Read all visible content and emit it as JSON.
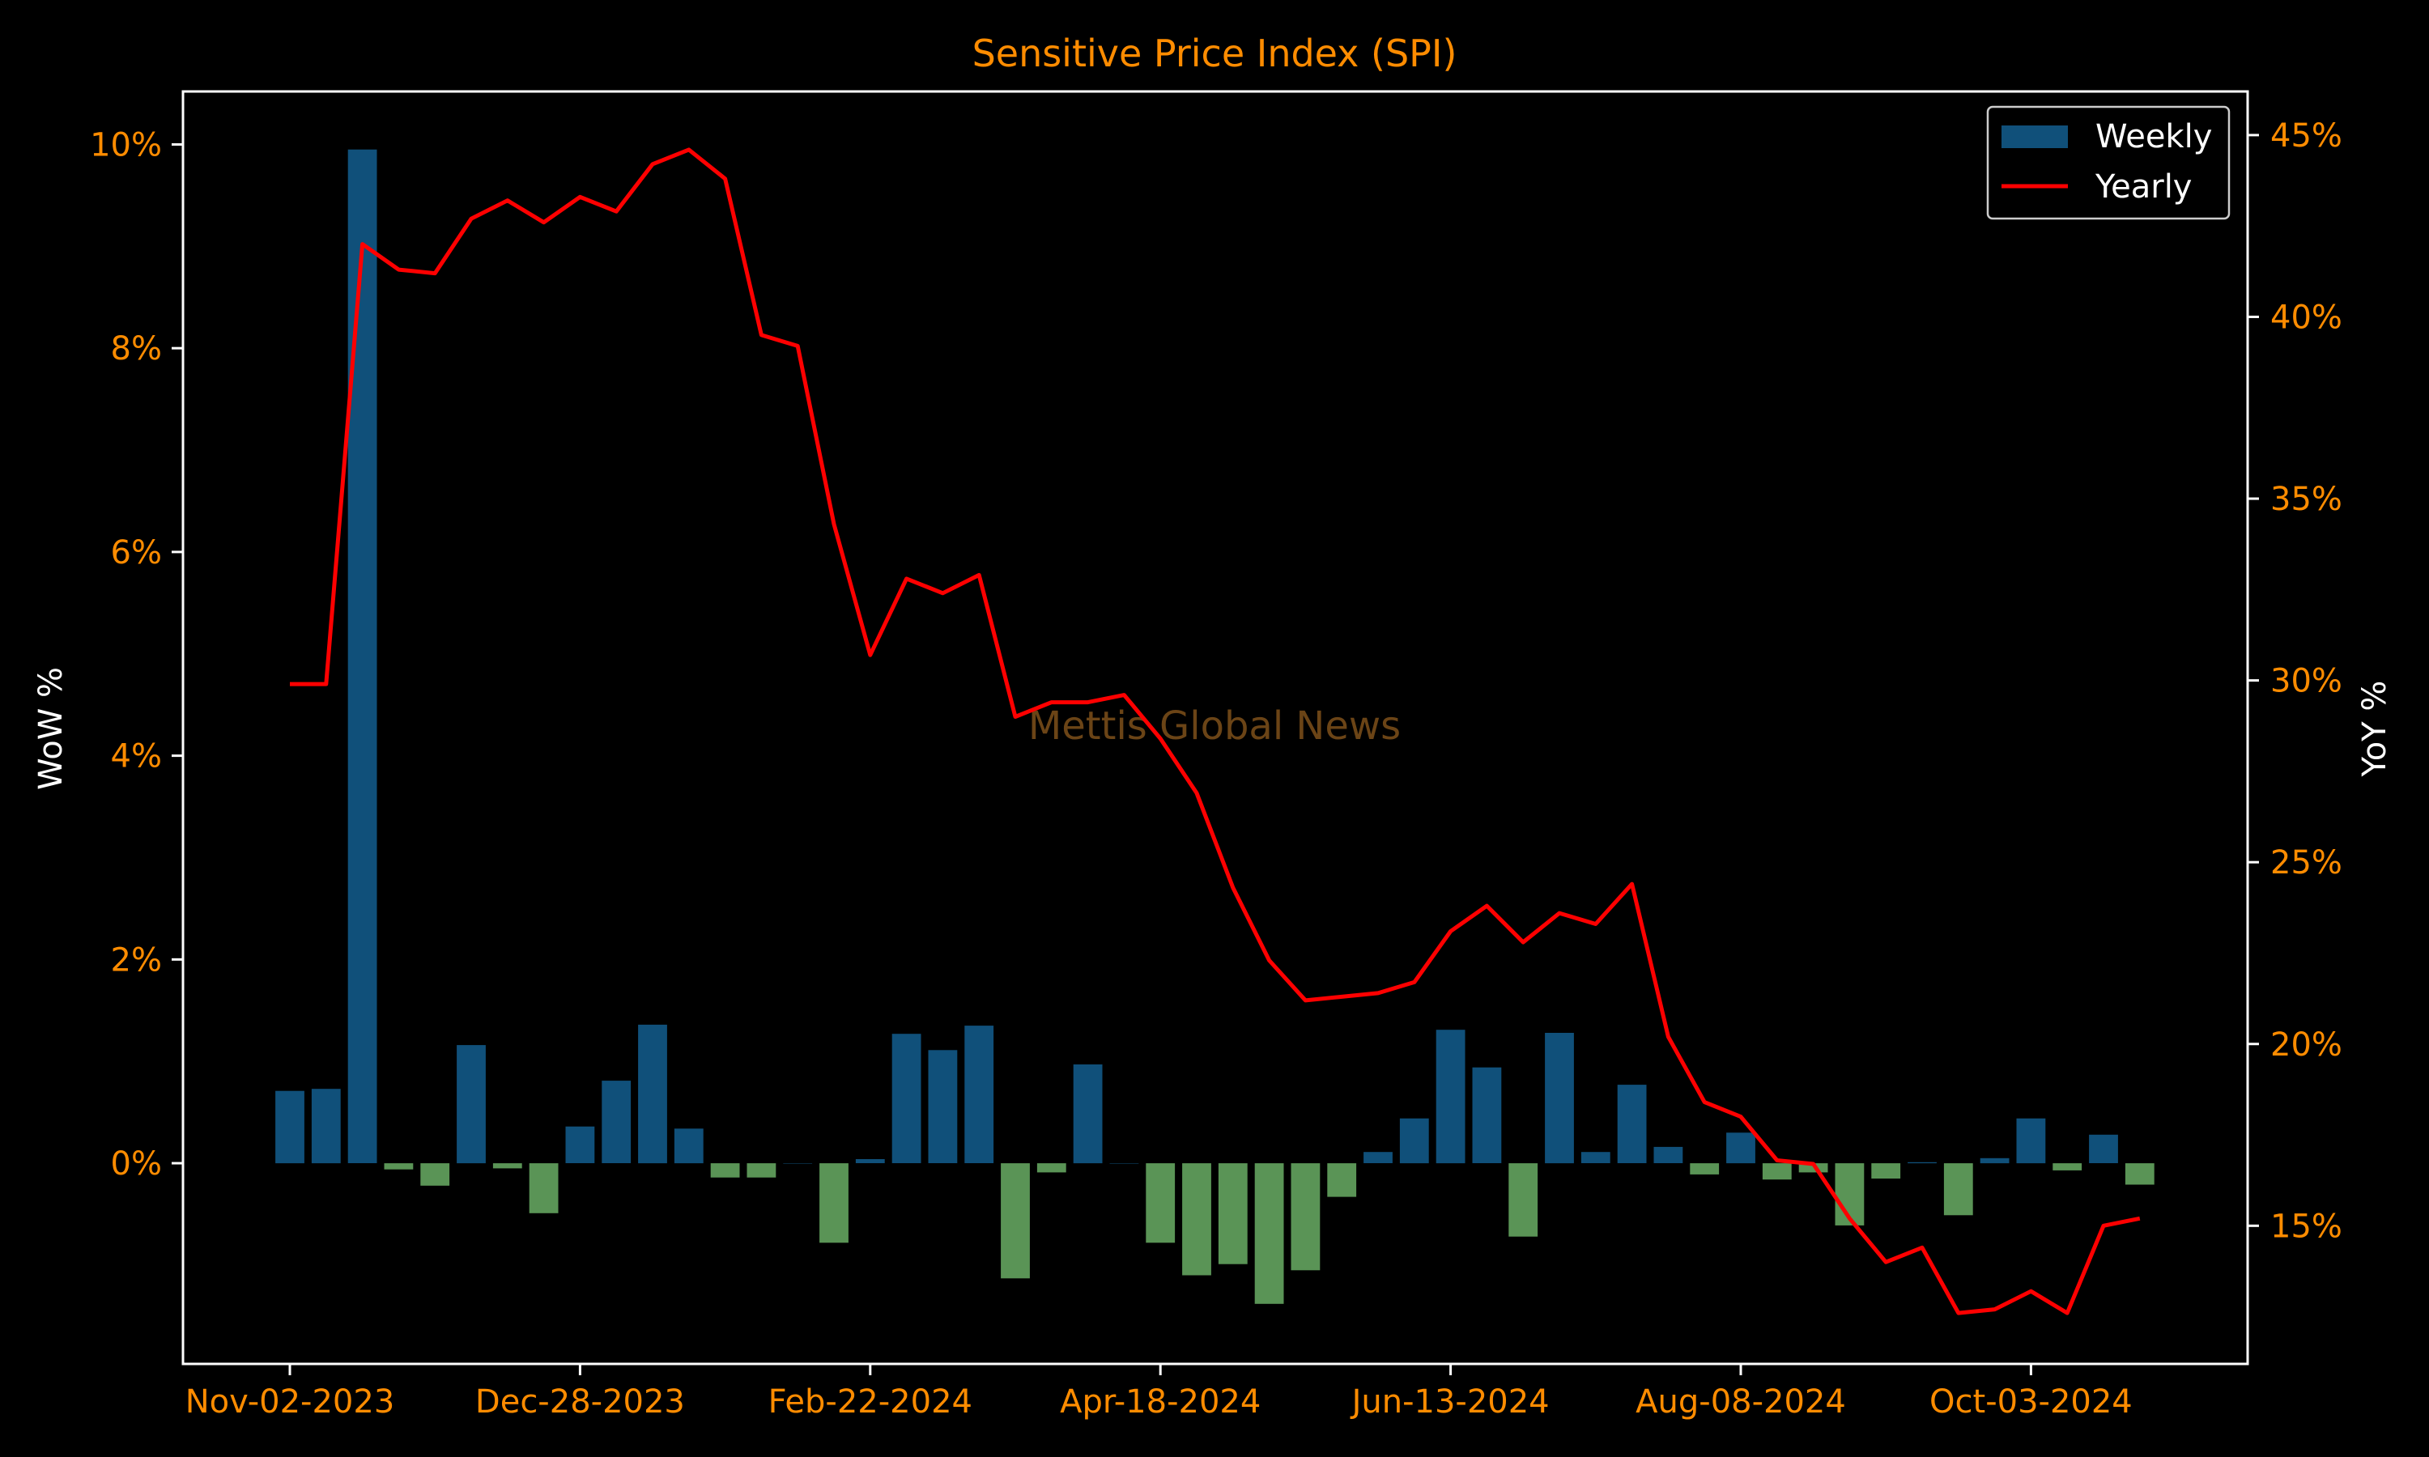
{
  "chart_data": {
    "type": "bar+line",
    "title": "Sensitive Price Index (SPI)",
    "watermark": "Mettis Global News",
    "ylabel_left": "WoW %",
    "ylabel_right": "YoY %",
    "x_tick_labels": [
      "Nov-02-2023",
      "Dec-28-2023",
      "Feb-22-2024",
      "Apr-18-2024",
      "Jun-13-2024",
      "Aug-08-2024",
      "Oct-03-2024"
    ],
    "left_ticks": [
      "0%",
      "2%",
      "4%",
      "6%",
      "8%",
      "10%"
    ],
    "right_ticks": [
      "15%",
      "20%",
      "25%",
      "30%",
      "35%",
      "40%",
      "45%"
    ],
    "ylim_left": [
      -1.97,
      10.52
    ],
    "ylim_right": [
      11.2,
      46.2
    ],
    "legend": [
      {
        "label": "Weekly",
        "kind": "bar",
        "color": "#10507a"
      },
      {
        "label": "Yearly",
        "kind": "line",
        "color": "#ff0000"
      }
    ],
    "legend_placement": "top-right",
    "colors": {
      "background": "#000000",
      "axes": "#ffffff",
      "tick_text": "#ff8c00",
      "title_text": "#ff8c00",
      "positive_bar": "#10507a",
      "negative_bar": "#5a9456",
      "yearly_line": "#ff0000",
      "watermark": "#6b4416"
    },
    "weekly": [
      0.71,
      0.73,
      9.95,
      -0.06,
      -0.22,
      1.16,
      -0.05,
      -0.49,
      0.36,
      0.81,
      1.36,
      0.34,
      -0.14,
      -0.14,
      0.0,
      -0.78,
      0.04,
      1.27,
      1.11,
      1.35,
      -1.13,
      -0.09,
      0.97,
      0.0,
      -0.78,
      -1.1,
      -0.99,
      -1.38,
      -1.05,
      -0.33,
      0.11,
      0.44,
      1.31,
      0.94,
      -0.72,
      1.28,
      0.11,
      0.77,
      0.16,
      -0.11,
      0.3,
      -0.16,
      -0.09,
      -0.61,
      -0.15,
      0.01,
      -0.51,
      0.05,
      0.44,
      -0.07,
      0.28,
      -0.21
    ],
    "yearly": [
      29.9,
      29.9,
      42.0,
      41.3,
      41.2,
      42.7,
      43.2,
      42.6,
      43.3,
      42.9,
      44.2,
      44.6,
      43.8,
      39.5,
      39.2,
      34.3,
      30.7,
      32.8,
      32.4,
      32.9,
      29.0,
      29.4,
      29.4,
      29.6,
      28.4,
      26.9,
      24.3,
      22.3,
      21.2,
      21.3,
      21.4,
      21.7,
      23.1,
      23.8,
      22.8,
      23.6,
      23.3,
      24.4,
      20.2,
      18.4,
      18.0,
      16.8,
      16.7,
      15.2,
      14.0,
      14.4,
      12.6,
      12.7,
      13.2,
      12.6,
      15.0,
      15.2
    ]
  }
}
